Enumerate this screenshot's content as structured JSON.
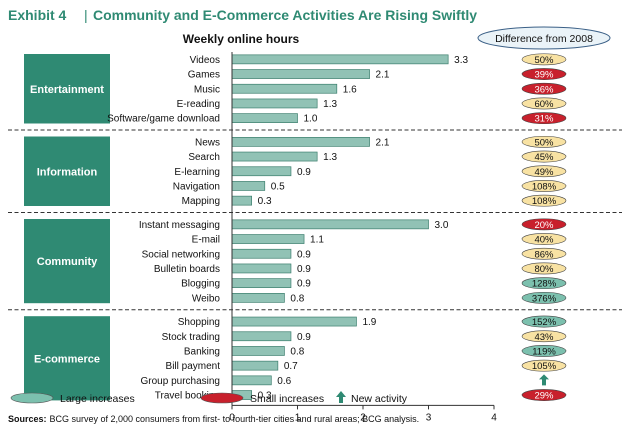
{
  "header": {
    "exhibit": "Exhibit 4",
    "separator": "|",
    "title": "Community and E-Commerce Activities Are Rising Swiftly",
    "subtitle": "Weekly online hours",
    "difference_header": "Difference from 2008"
  },
  "colors": {
    "accent_green": "#2f8a73",
    "bar_fill": "#91c2b5",
    "bar_stroke": "#3d7f6e",
    "large_increase": "#7cc0ae",
    "small_increase": "#c8202c",
    "neutral": "#f8e2a3",
    "new_arrow": "#2f8a73",
    "title_text": "#2f8a73"
  },
  "legend": {
    "large": "Large increases",
    "small": "Small increases",
    "new": "New activity"
  },
  "footer": {
    "sources_label": "Sources:",
    "sources_text": "BCG survey of 2,000 consumers from first- to fourth-tier cities and rural areas; BCG analysis."
  },
  "chart_data": {
    "type": "bar",
    "orientation": "horizontal",
    "title": "Weekly online hours",
    "xlim": [
      0,
      4
    ],
    "xticks": [
      "0",
      "1",
      "2",
      "3",
      "4"
    ],
    "groups": [
      {
        "name": "Entertainment",
        "items": [
          {
            "label": "Videos",
            "value": 3.3,
            "value_label": "3.3",
            "diff": "50%",
            "diff_type": "neutral"
          },
          {
            "label": "Games",
            "value": 2.1,
            "value_label": "2.1",
            "diff": "39%",
            "diff_type": "small"
          },
          {
            "label": "Music",
            "value": 1.6,
            "value_label": "1.6",
            "diff": "36%",
            "diff_type": "small"
          },
          {
            "label": "E-reading",
            "value": 1.3,
            "value_label": "1.3",
            "diff": "60%",
            "diff_type": "neutral"
          },
          {
            "label": "Software/game download",
            "value": 1.0,
            "value_label": "1.0",
            "diff": "31%",
            "diff_type": "small"
          }
        ]
      },
      {
        "name": "Information",
        "items": [
          {
            "label": "News",
            "value": 2.1,
            "value_label": "2.1",
            "diff": "50%",
            "diff_type": "neutral"
          },
          {
            "label": "Search",
            "value": 1.3,
            "value_label": "1.3",
            "diff": "45%",
            "diff_type": "neutral"
          },
          {
            "label": "E-learning",
            "value": 0.9,
            "value_label": "0.9",
            "diff": "49%",
            "diff_type": "neutral"
          },
          {
            "label": "Navigation",
            "value": 0.5,
            "value_label": "0.5",
            "diff": "108%",
            "diff_type": "neutral"
          },
          {
            "label": "Mapping",
            "value": 0.3,
            "value_label": "0.3",
            "diff": "108%",
            "diff_type": "neutral"
          }
        ]
      },
      {
        "name": "Community",
        "items": [
          {
            "label": "Instant messaging",
            "value": 3.0,
            "value_label": "3.0",
            "diff": "20%",
            "diff_type": "small"
          },
          {
            "label": "E-mail",
            "value": 1.1,
            "value_label": "1.1",
            "diff": "40%",
            "diff_type": "neutral"
          },
          {
            "label": "Social networking",
            "value": 0.9,
            "value_label": "0.9",
            "diff": "86%",
            "diff_type": "neutral"
          },
          {
            "label": "Bulletin boards",
            "value": 0.9,
            "value_label": "0.9",
            "diff": "80%",
            "diff_type": "neutral"
          },
          {
            "label": "Blogging",
            "value": 0.9,
            "value_label": "0.9",
            "diff": "128%",
            "diff_type": "large"
          },
          {
            "label": "Weibo",
            "value": 0.8,
            "value_label": "0.8",
            "diff": "376%",
            "diff_type": "large"
          }
        ]
      },
      {
        "name": "E-commerce",
        "items": [
          {
            "label": "Shopping",
            "value": 1.9,
            "value_label": "1.9",
            "diff": "152%",
            "diff_type": "large"
          },
          {
            "label": "Stock trading",
            "value": 0.9,
            "value_label": "0.9",
            "diff": "43%",
            "diff_type": "neutral"
          },
          {
            "label": "Banking",
            "value": 0.8,
            "value_label": "0.8",
            "diff": "119%",
            "diff_type": "large"
          },
          {
            "label": "Bill payment",
            "value": 0.7,
            "value_label": "0.7",
            "diff": "105%",
            "diff_type": "neutral"
          },
          {
            "label": "Group purchasing",
            "value": 0.6,
            "value_label": "0.6",
            "diff": "",
            "diff_type": "new"
          },
          {
            "label": "Travel booking",
            "value": 0.3,
            "value_label": "0.3",
            "diff": "29%",
            "diff_type": "small"
          }
        ]
      }
    ]
  }
}
